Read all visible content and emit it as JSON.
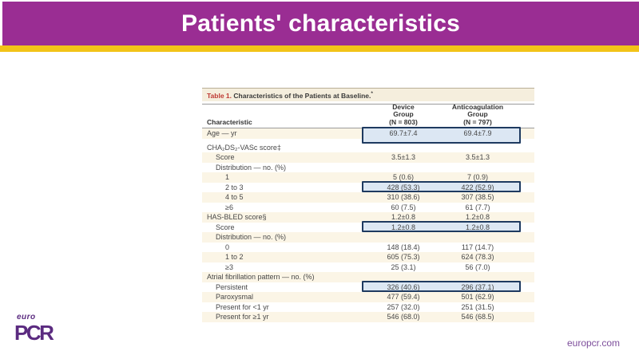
{
  "slide": {
    "title": "Patients' characteristics",
    "footer_link": "europcr.com",
    "logo_top": "euro",
    "logo_main": "PCR"
  },
  "colors": {
    "banner": "#9A2D93",
    "stripe": "#F2C318",
    "titlebar": "#F5EEDD",
    "red": "#BE3A34",
    "shade": "#FBF5E6",
    "hl-border": "#1E3A60",
    "hl-fill": "#DCE7F3",
    "logo": "#5B2B80",
    "link": "#7D4E9B"
  },
  "table": {
    "label": "Table 1.",
    "title": " Characteristics of the Patients at Baseline.",
    "title_footnote": "*",
    "columns": {
      "characteristic": "Characteristic",
      "device": [
        "Device",
        "Group",
        "(N = 803)"
      ],
      "anticoagulation": [
        "Anticoagulation",
        "Group",
        "(N = 797)"
      ]
    },
    "rows": [
      {
        "label": "Age — yr",
        "indent": 0,
        "device": "69.7±7.4",
        "anticoag": "69.4±7.9",
        "shaded": true,
        "highlight": true,
        "tall": true,
        "spacer_after": true
      },
      {
        "label": "CHA₂DS₂-VASc score‡",
        "indent": 0,
        "device": "",
        "anticoag": "",
        "shaded": false
      },
      {
        "label": "Score",
        "indent": 1,
        "device": "3.5±1.3",
        "anticoag": "3.5±1.3",
        "shaded": true
      },
      {
        "label": "Distribution — no. (%)",
        "indent": 1,
        "device": "",
        "anticoag": "",
        "shaded": false
      },
      {
        "label": "1",
        "indent": 2,
        "device": "5 (0.6)",
        "anticoag": "7 (0.9)",
        "shaded": true
      },
      {
        "label": "2 to 3",
        "indent": 2,
        "device": "428 (53.3)",
        "anticoag": "422 (52.9)",
        "shaded": false,
        "highlight": true
      },
      {
        "label": "4 to 5",
        "indent": 2,
        "device": "310 (38.6)",
        "anticoag": "307 (38.5)",
        "shaded": true
      },
      {
        "label": "≥6",
        "indent": 2,
        "device": "60 (7.5)",
        "anticoag": "61 (7.7)",
        "shaded": false
      },
      {
        "label": "HAS-BLED score§",
        "indent": 0,
        "device": "1.2±0.8",
        "anticoag": "1.2±0.8",
        "shaded": true
      },
      {
        "label": "Score",
        "indent": 1,
        "device": "1.2±0.8",
        "anticoag": "1.2±0.8",
        "shaded": false,
        "highlight": true
      },
      {
        "label": "Distribution — no. (%)",
        "indent": 1,
        "device": "",
        "anticoag": "",
        "shaded": true
      },
      {
        "label": "0",
        "indent": 2,
        "device": "148 (18.4)",
        "anticoag": "117 (14.7)",
        "shaded": false
      },
      {
        "label": "1 to 2",
        "indent": 2,
        "device": "605 (75.3)",
        "anticoag": "624 (78.3)",
        "shaded": true
      },
      {
        "label": "≥3",
        "indent": 2,
        "device": "25 (3.1)",
        "anticoag": "56 (7.0)",
        "shaded": false
      },
      {
        "label": "Atrial fibrillation pattern — no. (%)",
        "indent": 0,
        "device": "",
        "anticoag": "",
        "shaded": true
      },
      {
        "label": "Persistent",
        "indent": 1,
        "device": "326 (40.6)",
        "anticoag": "296 (37.1)",
        "shaded": false,
        "highlight": true
      },
      {
        "label": "Paroxysmal",
        "indent": 1,
        "device": "477 (59.4)",
        "anticoag": "501 (62.9)",
        "shaded": true
      },
      {
        "label": "Present for <1 yr",
        "indent": 1,
        "device": "257 (32.0)",
        "anticoag": "251 (31.5)",
        "shaded": false
      },
      {
        "label": "Present for ≥1 yr",
        "indent": 1,
        "device": "546 (68.0)",
        "anticoag": "546 (68.5)",
        "shaded": true
      }
    ]
  }
}
